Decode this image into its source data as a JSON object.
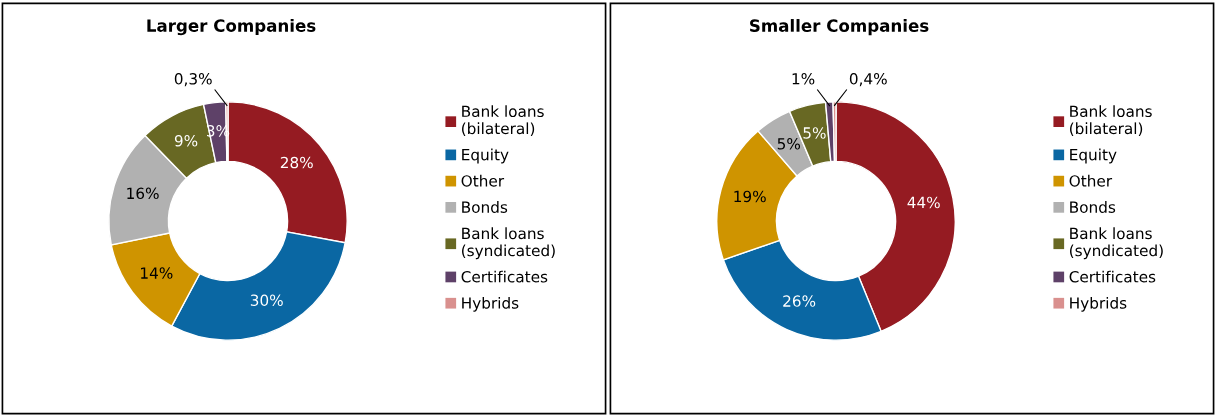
{
  "chart_data": [
    {
      "type": "donut",
      "title": "Larger Companies",
      "categories": [
        "Bank loans\n(bilateral)",
        "Equity",
        "Other",
        "Bonds",
        "Bank loans\n(syndicated)",
        "Certificates",
        "Hybrids"
      ],
      "values": [
        28,
        30,
        14,
        16,
        9,
        3,
        0.3
      ],
      "value_labels": [
        "28%",
        "30%",
        "14%",
        "16%",
        "9%",
        "3%",
        "0,3%"
      ],
      "colors": [
        "#951b22",
        "#0a67a3",
        "#cf9400",
        "#b1b1b1",
        "#686823",
        "#5e4168",
        "#d9908e"
      ],
      "legend": "right"
    },
    {
      "type": "donut",
      "title": "Smaller Companies",
      "categories": [
        "Bank loans\n(bilateral)",
        "Equity",
        "Other",
        "Bonds",
        "Bank loans\n(syndicated)",
        "Certificates",
        "Hybrids"
      ],
      "values": [
        44,
        26,
        19,
        5,
        5,
        1,
        0.4
      ],
      "value_labels": [
        "44%",
        "26%",
        "19%",
        "5%",
        "5%",
        "1%",
        "0,4%"
      ],
      "colors": [
        "#951b22",
        "#0a67a3",
        "#cf9400",
        "#b1b1b1",
        "#686823",
        "#5e4168",
        "#d9908e"
      ],
      "legend": "right"
    }
  ]
}
